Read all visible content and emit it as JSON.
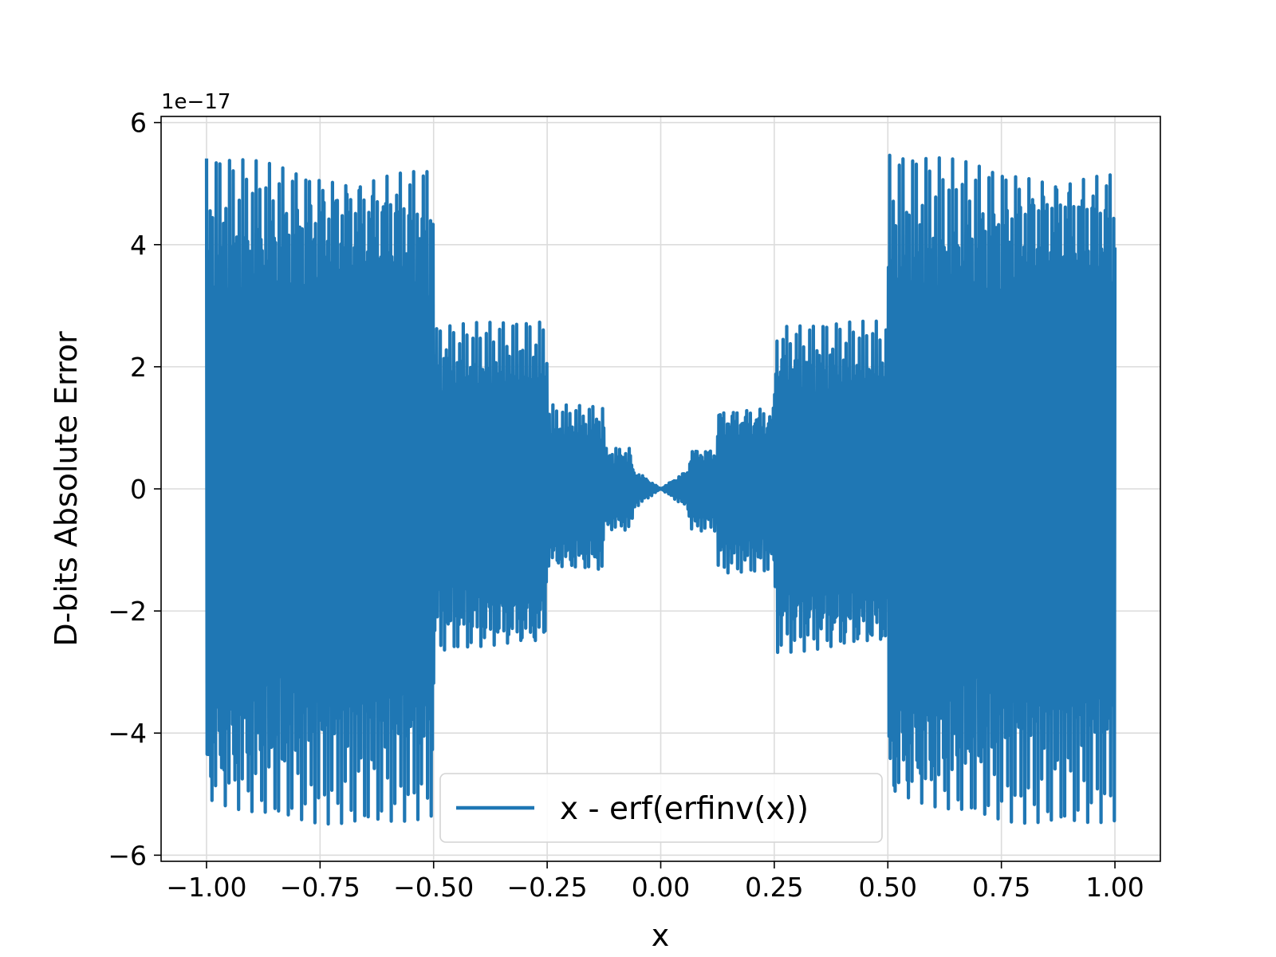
{
  "chart_data": {
    "type": "line",
    "title": "",
    "xlabel": "x",
    "ylabel": "D-bits Absolute Error",
    "y_offset_label": "1e−17",
    "xlim": [
      -1.1,
      1.1
    ],
    "ylim": [
      -6.1,
      6.1
    ],
    "grid": true,
    "legend_position": "lower center",
    "x_ticks": [
      -1.0,
      -0.75,
      -0.5,
      -0.25,
      0.0,
      0.25,
      0.5,
      0.75,
      1.0
    ],
    "x_tick_labels": [
      "−1.00",
      "−0.75",
      "−0.50",
      "−0.25",
      "0.00",
      "0.25",
      "0.50",
      "0.75",
      "1.00"
    ],
    "y_ticks": [
      -6,
      -4,
      -2,
      0,
      2,
      4,
      6
    ],
    "y_tick_labels": [
      "−6",
      "−4",
      "−2",
      "0",
      "2",
      "4",
      "6"
    ],
    "series": [
      {
        "name": "x - erf(erfinv(x))",
        "color": "#1f77b4",
        "style": "dense oscillation between positive and negative envelopes",
        "x": [
          -1.0,
          -0.5,
          -0.5,
          -0.25,
          -0.25,
          -0.125,
          -0.125,
          -0.0625,
          -0.0625,
          0.0,
          0.0625,
          0.0625,
          0.125,
          0.125,
          0.25,
          0.25,
          0.5,
          0.5,
          1.0
        ],
        "upper": [
          5.5,
          5.5,
          2.75,
          2.75,
          1.38,
          1.38,
          0.69,
          0.69,
          0.35,
          0.0,
          0.35,
          0.69,
          0.69,
          1.38,
          1.38,
          2.75,
          2.75,
          5.5,
          5.5
        ],
        "lower": [
          -5.5,
          -5.5,
          -2.75,
          -2.75,
          -1.38,
          -1.38,
          -0.69,
          -0.69,
          -0.35,
          0.0,
          -0.35,
          -0.69,
          -0.69,
          -1.38,
          -1.38,
          -2.75,
          -2.75,
          -5.5,
          -5.5
        ]
      }
    ]
  }
}
